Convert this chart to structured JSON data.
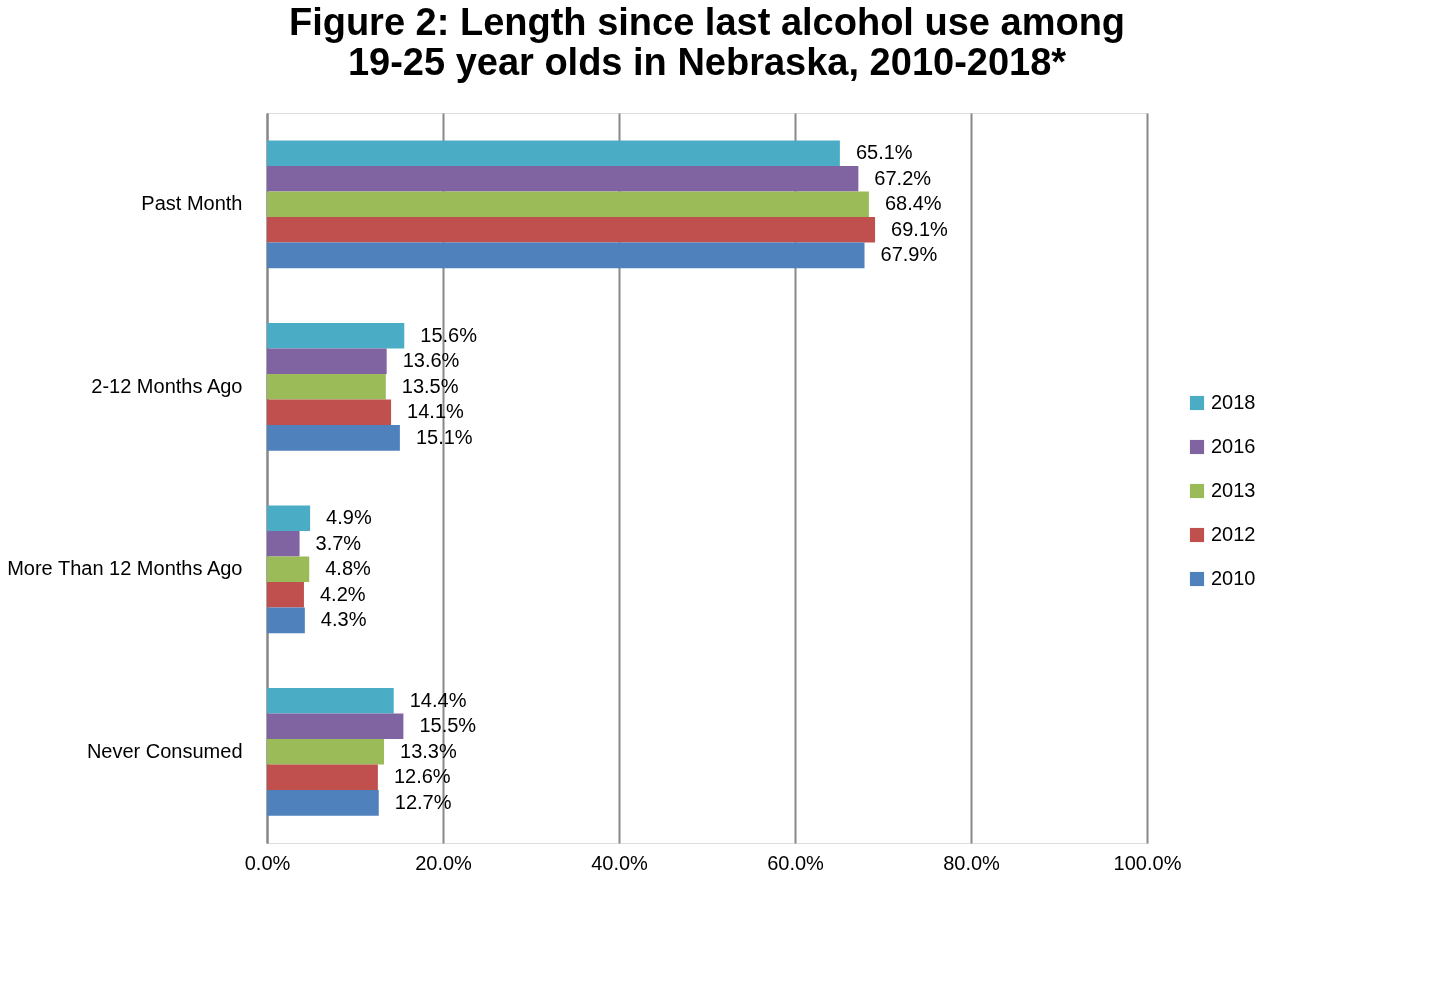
{
  "chart_data": {
    "type": "bar",
    "orientation": "horizontal",
    "title": "Figure 2: Length since last alcohol use among 19-25 year olds in Nebraska, 2010-2018*",
    "categories": [
      "Past Month",
      "2-12 Months Ago",
      "More Than 12 Months Ago",
      "Never Consumed"
    ],
    "series": [
      {
        "name": "2018",
        "color": "#4bacc6",
        "values": [
          65.1,
          15.6,
          4.9,
          14.4
        ],
        "value_labels": [
          "65.1%",
          "15.6%",
          "4.9%",
          "14.4%"
        ]
      },
      {
        "name": "2016",
        "color": "#8064a2",
        "values": [
          67.2,
          13.6,
          3.7,
          15.5
        ],
        "value_labels": [
          "67.2%",
          "13.6%",
          "3.7%",
          "15.5%"
        ]
      },
      {
        "name": "2013",
        "color": "#9bbb59",
        "values": [
          68.4,
          13.5,
          4.8,
          13.3
        ],
        "value_labels": [
          "68.4%",
          "13.5%",
          "4.8%",
          "13.3%"
        ]
      },
      {
        "name": "2012",
        "color": "#c0504d",
        "values": [
          69.1,
          14.1,
          4.2,
          12.6
        ],
        "value_labels": [
          "69.1%",
          "14.1%",
          "4.2%",
          "12.6%"
        ]
      },
      {
        "name": "2010",
        "color": "#4f81bd",
        "values": [
          67.9,
          15.1,
          4.3,
          12.7
        ],
        "value_labels": [
          "67.9%",
          "15.1%",
          "4.3%",
          "12.7%"
        ]
      }
    ],
    "xlim": [
      0,
      100
    ],
    "xticks": [
      {
        "value": 0,
        "label": "0.0%"
      },
      {
        "value": 20,
        "label": "20.0%"
      },
      {
        "value": 40,
        "label": "40.0%"
      },
      {
        "value": 60,
        "label": "60.0%"
      },
      {
        "value": 80,
        "label": "80.0%"
      },
      {
        "value": 100,
        "label": "100.0%"
      }
    ],
    "grid": "x",
    "legend": "right"
  }
}
